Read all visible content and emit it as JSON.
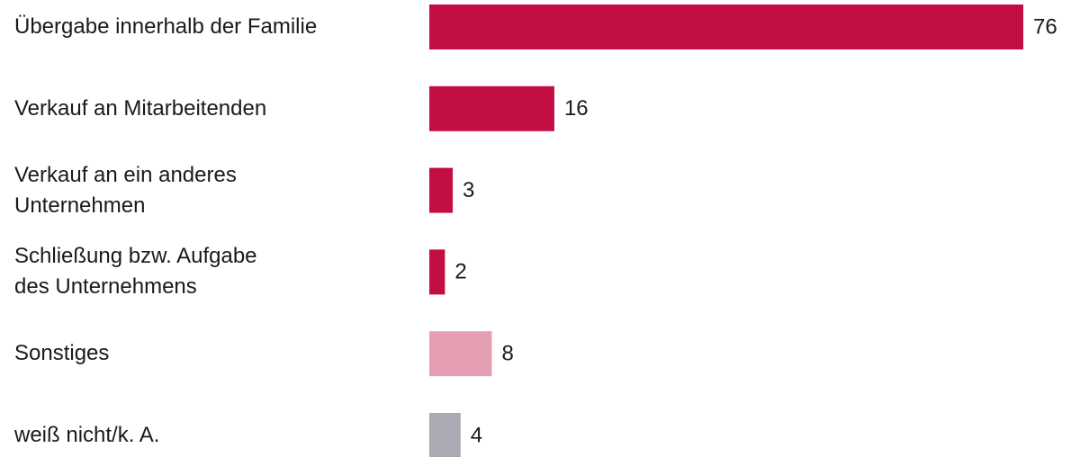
{
  "chart_data": {
    "type": "barh",
    "categories": [
      "Übergabe innerhalb der Familie",
      "Verkauf an Mitarbeitenden",
      "Verkauf an ein anderes\nUnternehmen",
      "Schließung bzw. Aufgabe\ndes Unternehmens",
      "Sonstiges",
      "weiß nicht/k. A."
    ],
    "values": [
      76,
      16,
      3,
      2,
      8,
      4
    ],
    "colors": [
      "#c20e42",
      "#c20e42",
      "#c20e42",
      "#c20e42",
      "#e59fb3",
      "#a9aab4"
    ]
  }
}
